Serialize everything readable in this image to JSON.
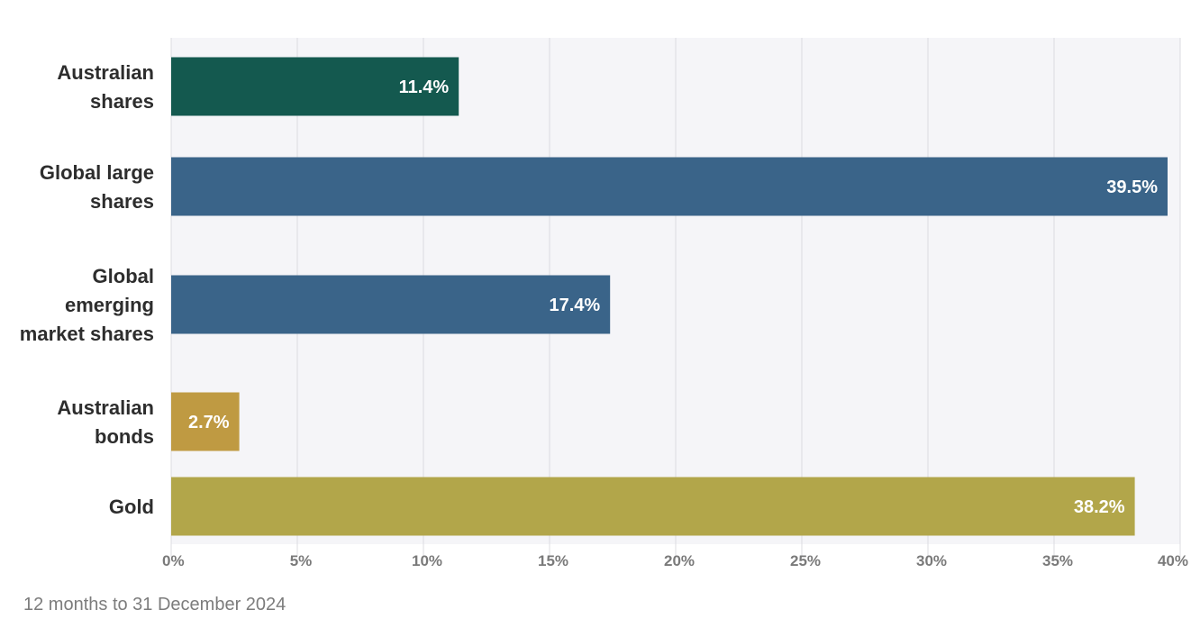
{
  "chart_data": {
    "type": "bar",
    "orientation": "horizontal",
    "categories": [
      [
        "Australian",
        "shares"
      ],
      [
        "Global large",
        "shares"
      ],
      [
        "Global",
        "emerging",
        "market shares"
      ],
      [
        "Australian",
        "bonds"
      ],
      [
        "Gold"
      ]
    ],
    "values": [
      11.4,
      39.5,
      17.4,
      2.7,
      38.2
    ],
    "value_labels": [
      "11.4%",
      "39.5%",
      "17.4%",
      "2.7%",
      "38.2%"
    ],
    "bar_colors": [
      "#14594f",
      "#3a6489",
      "#3a6489",
      "#bf9a42",
      "#b2a64a"
    ],
    "xlim": [
      0,
      40
    ],
    "x_ticks": [
      "0%",
      "5%",
      "10%",
      "15%",
      "20%",
      "25%",
      "30%",
      "35%",
      "40%"
    ],
    "grid": true,
    "plot_background": "#f5f5f8"
  },
  "footnote": "12 months to 31 December 2024"
}
